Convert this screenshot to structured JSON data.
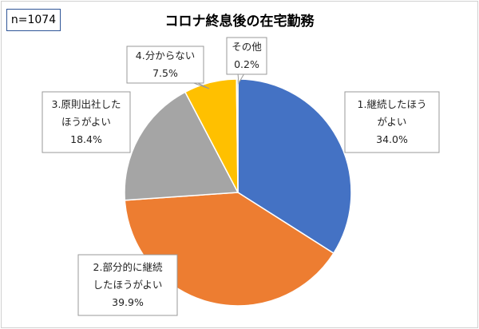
{
  "sample_label": "n=1074",
  "chart_data": {
    "type": "pie",
    "title": "コロナ終息後の在宅勤務",
    "slices": [
      {
        "label_lines": [
          "1.継続したほう",
          "がよい"
        ],
        "value": 34.0,
        "value_text": "34.0%",
        "color": "#4472c4"
      },
      {
        "label_lines": [
          "2.部分的に継続",
          "したほうがよい"
        ],
        "value": 39.9,
        "value_text": "39.9%",
        "color": "#ed7d31"
      },
      {
        "label_lines": [
          "3.原則出社した",
          "ほうがよい"
        ],
        "value": 18.4,
        "value_text": "18.4%",
        "color": "#a5a5a5"
      },
      {
        "label_lines": [
          "4.分からない"
        ],
        "value": 7.5,
        "value_text": "7.5%",
        "color": "#ffc000"
      },
      {
        "label_lines": [
          "その他"
        ],
        "value": 0.2,
        "value_text": "0.2%",
        "color": "#5b9bd5"
      }
    ]
  }
}
